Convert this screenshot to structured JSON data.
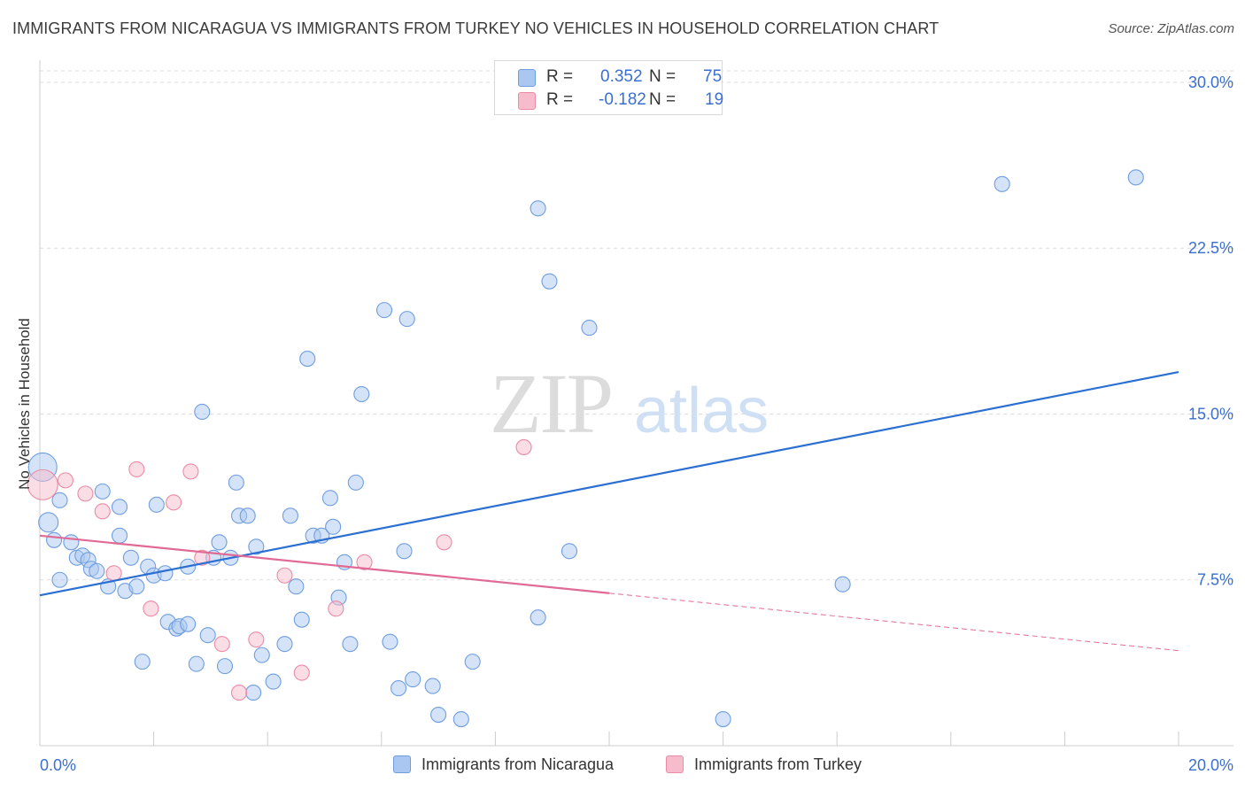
{
  "header": {
    "title": "IMMIGRANTS FROM NICARAGUA VS IMMIGRANTS FROM TURKEY NO VEHICLES IN HOUSEHOLD CORRELATION CHART",
    "source": "Source: ZipAtlas.com"
  },
  "watermark": {
    "zip": "ZIP",
    "atlas": "atlas"
  },
  "legend": {
    "r_label": "R =",
    "n_label": "N =",
    "rows": [
      {
        "r": "0.352",
        "n": "75"
      },
      {
        "r": "-0.182",
        "n": "19"
      }
    ]
  },
  "colors": {
    "blue_fill": "#a9c7f0",
    "blue_stroke": "#6f9ee0",
    "blue_line": "#2a6fd1",
    "pink_fill": "#f7bccc",
    "pink_stroke": "#eb8ba6",
    "pink_line": "#e06a95",
    "axis_text": "#3a6fd0"
  },
  "chart_data": {
    "type": "scatter",
    "title": "IMMIGRANTS FROM NICARAGUA VS IMMIGRANTS FROM TURKEY NO VEHICLES IN HOUSEHOLD CORRELATION CHART",
    "xlabel": "",
    "ylabel": "No Vehicles in Household",
    "xlim": [
      0,
      20
    ],
    "ylim": [
      0,
      31
    ],
    "x_tick_labels": [
      "0.0%",
      "20.0%"
    ],
    "y_ticks": [
      7.5,
      15,
      22.5,
      30
    ],
    "y_tick_labels": [
      "7.5%",
      "15.0%",
      "22.5%",
      "30.0%"
    ],
    "grid": true,
    "legend_position": "top-center",
    "series": [
      {
        "name": "Immigrants from Nicaragua",
        "color": "#a9c7f0",
        "trend": {
          "x": [
            0,
            20
          ],
          "y": [
            6.8,
            16.9
          ]
        },
        "points": [
          [
            0.05,
            12.6
          ],
          [
            0.15,
            10.1
          ],
          [
            0.25,
            9.3
          ],
          [
            0.35,
            11.1
          ],
          [
            0.35,
            7.5
          ],
          [
            0.55,
            9.2
          ],
          [
            0.65,
            8.5
          ],
          [
            0.75,
            8.6
          ],
          [
            0.85,
            8.4
          ],
          [
            0.9,
            8.0
          ],
          [
            1.0,
            7.9
          ],
          [
            1.1,
            11.5
          ],
          [
            1.2,
            7.2
          ],
          [
            1.4,
            9.5
          ],
          [
            1.4,
            10.8
          ],
          [
            1.5,
            7.0
          ],
          [
            1.6,
            8.5
          ],
          [
            1.7,
            7.2
          ],
          [
            1.8,
            3.8
          ],
          [
            1.9,
            8.1
          ],
          [
            2.0,
            7.7
          ],
          [
            2.05,
            10.9
          ],
          [
            2.2,
            7.8
          ],
          [
            2.25,
            5.6
          ],
          [
            2.4,
            5.3
          ],
          [
            2.45,
            5.4
          ],
          [
            2.6,
            8.1
          ],
          [
            2.6,
            5.5
          ],
          [
            2.75,
            3.7
          ],
          [
            2.85,
            15.1
          ],
          [
            2.95,
            5.0
          ],
          [
            3.05,
            8.5
          ],
          [
            3.15,
            9.2
          ],
          [
            3.25,
            3.6
          ],
          [
            3.35,
            8.5
          ],
          [
            3.45,
            11.9
          ],
          [
            3.5,
            10.4
          ],
          [
            3.65,
            10.4
          ],
          [
            3.75,
            2.4
          ],
          [
            3.8,
            9.0
          ],
          [
            3.9,
            4.1
          ],
          [
            4.1,
            2.9
          ],
          [
            4.3,
            4.6
          ],
          [
            4.4,
            10.4
          ],
          [
            4.5,
            7.2
          ],
          [
            4.6,
            5.7
          ],
          [
            4.7,
            17.5
          ],
          [
            4.8,
            9.5
          ],
          [
            4.95,
            9.5
          ],
          [
            5.1,
            11.2
          ],
          [
            5.15,
            9.9
          ],
          [
            5.25,
            6.7
          ],
          [
            5.35,
            8.3
          ],
          [
            5.45,
            4.6
          ],
          [
            5.55,
            11.9
          ],
          [
            5.65,
            15.9
          ],
          [
            6.05,
            19.7
          ],
          [
            6.15,
            4.7
          ],
          [
            6.3,
            2.6
          ],
          [
            6.4,
            8.8
          ],
          [
            6.45,
            19.3
          ],
          [
            6.55,
            3.0
          ],
          [
            6.9,
            2.7
          ],
          [
            7.0,
            1.4
          ],
          [
            7.4,
            1.2
          ],
          [
            7.6,
            3.8
          ],
          [
            8.75,
            5.8
          ],
          [
            8.75,
            24.3
          ],
          [
            8.95,
            21.0
          ],
          [
            9.3,
            8.8
          ],
          [
            9.65,
            18.9
          ],
          [
            12.0,
            1.2
          ],
          [
            14.1,
            7.3
          ],
          [
            16.9,
            25.4
          ],
          [
            19.25,
            25.7
          ]
        ]
      },
      {
        "name": "Immigrants from Turkey",
        "color": "#f7bccc",
        "trend": {
          "x": [
            0,
            20
          ],
          "y": [
            9.5,
            4.3
          ],
          "solid_until": 10.0
        },
        "points": [
          [
            0.05,
            11.8
          ],
          [
            0.45,
            12.0
          ],
          [
            0.8,
            11.4
          ],
          [
            1.1,
            10.6
          ],
          [
            1.3,
            7.8
          ],
          [
            1.7,
            12.5
          ],
          [
            1.95,
            6.2
          ],
          [
            2.35,
            11.0
          ],
          [
            2.65,
            12.4
          ],
          [
            2.85,
            8.5
          ],
          [
            3.2,
            4.6
          ],
          [
            3.5,
            2.4
          ],
          [
            3.8,
            4.8
          ],
          [
            4.3,
            7.7
          ],
          [
            4.6,
            3.3
          ],
          [
            5.2,
            6.2
          ],
          [
            5.7,
            8.3
          ],
          [
            7.1,
            9.2
          ],
          [
            8.5,
            13.5
          ]
        ]
      }
    ]
  }
}
